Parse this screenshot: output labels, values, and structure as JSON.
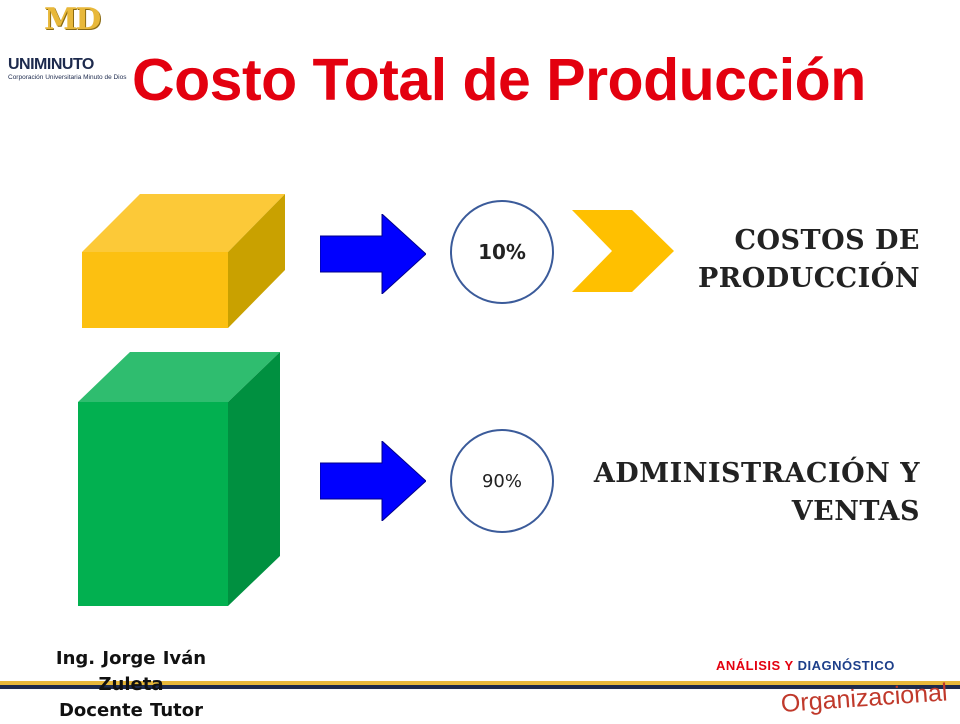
{
  "logo": {
    "letters": "MD",
    "name": "UNIMINUTO",
    "subtitle": "Corporación Universitaria Minuto de Dios"
  },
  "title": "Costo Total de Producción",
  "rows": [
    {
      "percent": "10%",
      "label_line1": "COSTOS DE",
      "label_line2": "PRODUCCIÓN"
    },
    {
      "percent": "90%",
      "label_line1": "ADMINISTRACIÓN Y",
      "label_line2": "VENTAS"
    }
  ],
  "footer": {
    "author_line1": "Ing.   Jorge Iván",
    "author_line2": "Zuleta",
    "author_line3": "Docente Tutor",
    "tag_part1": "ANÁLISIS Y",
    "tag_part2": "DIAGNÓSTICO",
    "org": "Organizacional"
  },
  "colors": {
    "title": "#e3000f",
    "yellow_box": "#fcc011",
    "green_box": "#02b050",
    "arrow": "#0000ff",
    "circle_border": "#3b5b9a"
  }
}
